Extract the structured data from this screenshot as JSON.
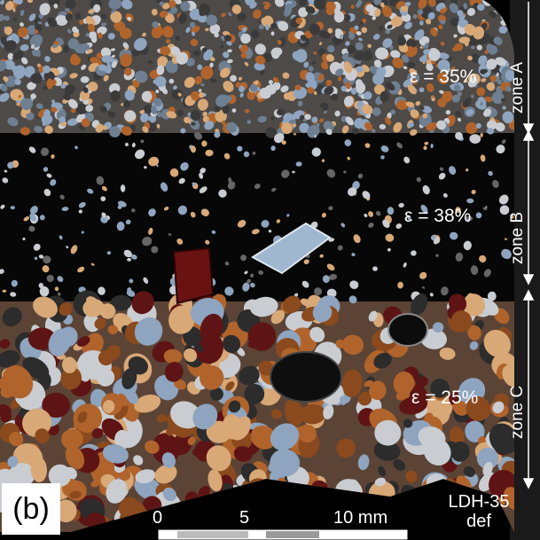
{
  "panel_label": "(b)",
  "zones": [
    {
      "label": "zone A",
      "strain": "ε = 35%"
    },
    {
      "label": "zone B",
      "strain": "ε = 38%"
    },
    {
      "label": "zone C",
      "strain": "ε = 25%"
    }
  ],
  "scale_bar": {
    "ticks": [
      "0",
      "5",
      "10 mm"
    ]
  },
  "sample": {
    "line1": "LDH-35",
    "line2": "def"
  },
  "colors": {
    "background": "#000000",
    "grain_orange": "#b0642c",
    "grain_darkred": "#5e1414",
    "grain_blue": "#8ea4bf",
    "grain_grey": "#c9cdd2",
    "grain_tan": "#d8a877"
  }
}
